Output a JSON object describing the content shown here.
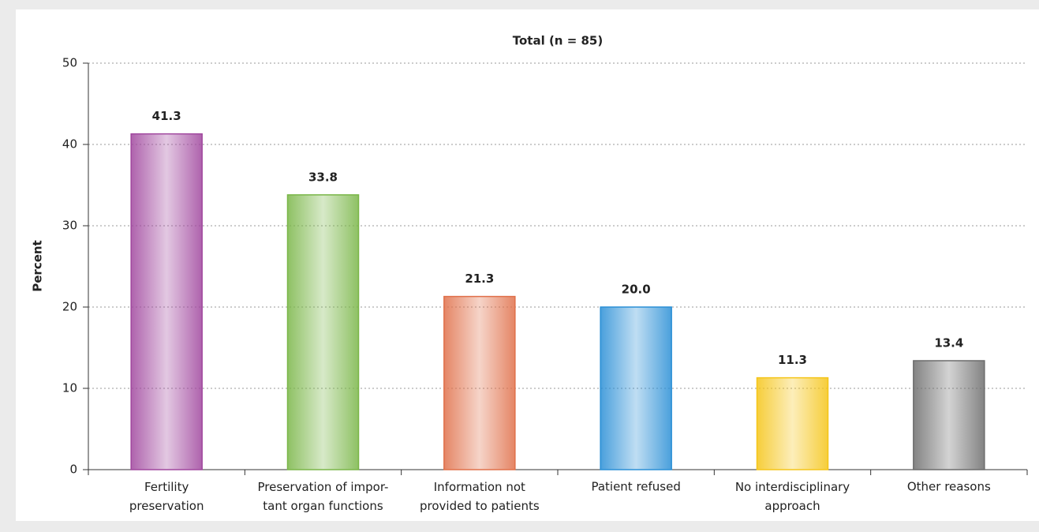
{
  "chart_data": {
    "type": "bar",
    "title": "Total (n = 85)",
    "ylabel": "Percent",
    "categories": [
      "Fertility\npreservation",
      "Preservation of impor-\ntant organ functions",
      "Information not\nprovided to patients",
      "Patient refused",
      "No interdisciplinary\napproach",
      "Other reasons"
    ],
    "values": [
      41.3,
      33.8,
      21.3,
      20,
      11.3,
      13.4
    ],
    "value_labels": [
      "41.3",
      "33.8",
      "21.3",
      "20.0",
      "11.3",
      "13.4"
    ],
    "colors": [
      "#a0479e",
      "#7ab648",
      "#e0704a",
      "#2a8fd6",
      "#f5c518",
      "#6d6d6d"
    ],
    "ylim": [
      0,
      50
    ],
    "yticks": [
      0,
      10,
      20,
      30,
      40,
      50
    ],
    "grid": true
  }
}
